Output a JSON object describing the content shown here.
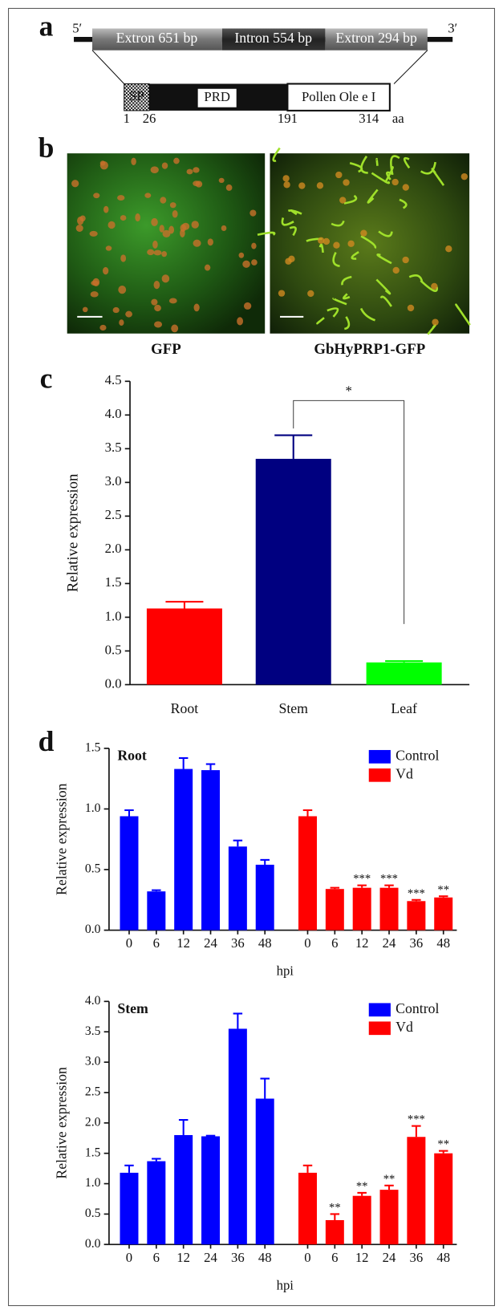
{
  "panel_labels": [
    "a",
    "b",
    "c",
    "d"
  ],
  "gene_diagram": {
    "five_prime": "5′",
    "three_prime": "3′",
    "segments": [
      "Extron 651 bp",
      "Intron 554 bp",
      "Extron 294 bp"
    ],
    "domains": [
      "SP",
      "PRD",
      "Pollen Ole e I"
    ],
    "positions": [
      1,
      26,
      191,
      314
    ],
    "unit": "aa"
  },
  "images": {
    "captions": [
      "GFP",
      "GbHyPRP1-GFP"
    ]
  },
  "chart_data": [
    {
      "type": "bar",
      "y_label": "Relative expression",
      "categories": [
        "Root",
        "Stem",
        "Leaf"
      ],
      "values": [
        1.13,
        3.35,
        0.33
      ],
      "errors": [
        0.1,
        0.35,
        0.02
      ],
      "colors": [
        "#ff0000",
        "#000080",
        "#00ff00"
      ],
      "ylim": [
        0,
        4.5
      ],
      "yticks": [
        {
          "value": 0,
          "label": "0.0"
        },
        0.5,
        {
          "value": 1,
          "label": "1.0"
        },
        1.5,
        {
          "value": 2,
          "label": "2.0"
        },
        2.5,
        {
          "value": 3,
          "label": "3.0"
        },
        3.5,
        {
          "value": 4,
          "label": "4.0"
        },
        4.5
      ],
      "annotation": "*"
    },
    {
      "type": "grouped_bar",
      "title": "Root",
      "y_label": "Relative expression",
      "x_label": "hpi",
      "categories": [
        "0",
        "6",
        "12",
        "24",
        "36",
        "48"
      ],
      "series": [
        {
          "name": "Control",
          "color": "#0000ff",
          "values": [
            0.94,
            0.32,
            1.33,
            1.32,
            0.69,
            0.54
          ],
          "errors": [
            0.05,
            0.01,
            0.09,
            0.05,
            0.05,
            0.04
          ]
        },
        {
          "name": "Vd",
          "color": "#ff0000",
          "values": [
            0.94,
            0.34,
            0.35,
            0.35,
            0.24,
            0.27
          ],
          "errors": [
            0.05,
            0.01,
            0.02,
            0.02,
            0.01,
            0.01
          ],
          "significance": [
            null,
            null,
            "***",
            "***",
            "***",
            "**"
          ]
        }
      ],
      "ylim": [
        0,
        1.5
      ],
      "yticks": [
        {
          "value": 0,
          "label": "0.0"
        },
        0.5,
        {
          "value": 1,
          "label": "1.0"
        },
        1.5
      ]
    },
    {
      "type": "grouped_bar",
      "title": "Stem",
      "y_label": "Relative expression",
      "x_label": "hpi",
      "categories": [
        "0",
        "6",
        "12",
        "24",
        "36",
        "48"
      ],
      "series": [
        {
          "name": "Control",
          "color": "#0000ff",
          "values": [
            1.18,
            1.37,
            1.8,
            1.78,
            3.55,
            2.4
          ],
          "errors": [
            0.12,
            0.04,
            0.25,
            0.01,
            0.25,
            0.33
          ]
        },
        {
          "name": "Vd",
          "color": "#ff0000",
          "values": [
            1.18,
            0.4,
            0.8,
            0.9,
            1.77,
            1.5
          ],
          "errors": [
            0.12,
            0.1,
            0.05,
            0.07,
            0.18,
            0.04
          ],
          "significance": [
            null,
            "**",
            "**",
            "**",
            "***",
            "**"
          ]
        }
      ],
      "ylim": [
        0,
        4
      ],
      "yticks": [
        {
          "value": 0,
          "label": "0.0"
        },
        0.5,
        {
          "value": 1,
          "label": "1.0"
        },
        1.5,
        {
          "value": 2,
          "label": "2.0"
        },
        2.5,
        {
          "value": 3,
          "label": "3.0"
        },
        3.5,
        {
          "value": 4,
          "label": "4.0"
        }
      ]
    }
  ]
}
